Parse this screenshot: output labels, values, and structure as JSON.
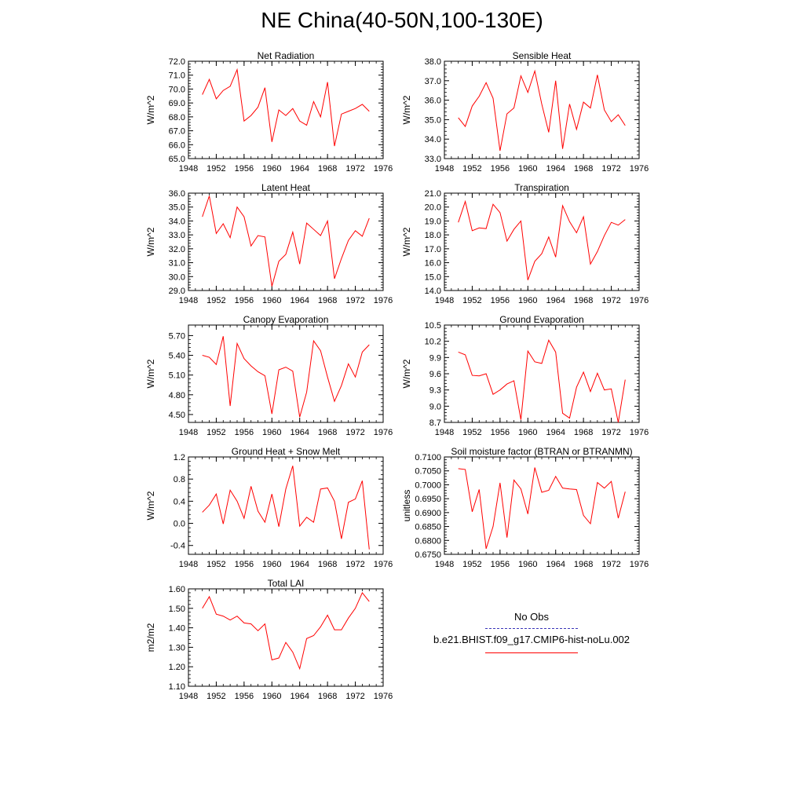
{
  "page": {
    "title": "NE China(40-50N,100-130E)"
  },
  "legend": {
    "obs_label": "No Obs",
    "model_label": "b.e21.BHIST.f09_g17.CMIP6-hist-noLu.002",
    "obs_color": "#3a35b8",
    "model_color": "#ff0000"
  },
  "chart_data": [
    {
      "type": "line",
      "title": "Net Radiation",
      "ylabel": "W/m^2",
      "xlim": [
        1948,
        1976
      ],
      "ylim": [
        65.0,
        72.0
      ],
      "xticks": [
        1948,
        1952,
        1956,
        1960,
        1964,
        1968,
        1972,
        1976
      ],
      "yticks": [
        65.0,
        66.0,
        67.0,
        68.0,
        69.0,
        70.0,
        71.0,
        72.0
      ],
      "ytick_labels": [
        "65.0",
        "66.0",
        "67.0",
        "68.0",
        "69.0",
        "70.0",
        "71.0",
        "72.0"
      ],
      "x": [
        1950,
        1951,
        1952,
        1953,
        1954,
        1955,
        1956,
        1957,
        1958,
        1959,
        1960,
        1961,
        1962,
        1963,
        1964,
        1965,
        1966,
        1967,
        1968,
        1969,
        1970,
        1971,
        1972,
        1973,
        1974
      ],
      "series": [
        {
          "name": "b.e21.BHIST.f09_g17.CMIP6-hist-noLu.002",
          "color": "#ff0000",
          "values": [
            69.6,
            70.7,
            69.3,
            69.9,
            70.2,
            71.4,
            67.7,
            68.1,
            68.7,
            70.1,
            66.2,
            68.5,
            68.1,
            68.6,
            67.7,
            67.4,
            69.1,
            68.0,
            70.5,
            65.9,
            68.2,
            68.4,
            68.6,
            68.9,
            68.4
          ]
        }
      ]
    },
    {
      "type": "line",
      "title": "Sensible Heat",
      "ylabel": "W/m^2",
      "xlim": [
        1948,
        1976
      ],
      "ylim": [
        33.0,
        38.0
      ],
      "xticks": [
        1948,
        1952,
        1956,
        1960,
        1964,
        1968,
        1972,
        1976
      ],
      "yticks": [
        33.0,
        34.0,
        35.0,
        36.0,
        37.0,
        38.0
      ],
      "ytick_labels": [
        "33.0",
        "34.0",
        "35.0",
        "36.0",
        "37.0",
        "38.0"
      ],
      "x": [
        1950,
        1951,
        1952,
        1953,
        1954,
        1955,
        1956,
        1957,
        1958,
        1959,
        1960,
        1961,
        1962,
        1963,
        1964,
        1965,
        1966,
        1967,
        1968,
        1969,
        1970,
        1971,
        1972,
        1973,
        1974
      ],
      "series": [
        {
          "name": "b.e21.BHIST.f09_g17.CMIP6-hist-noLu.002",
          "color": "#ff0000",
          "values": [
            35.1,
            34.65,
            35.7,
            36.2,
            36.9,
            36.1,
            33.4,
            35.3,
            35.6,
            37.25,
            36.4,
            37.5,
            35.8,
            34.35,
            37.0,
            33.5,
            35.8,
            34.5,
            35.9,
            35.6,
            37.3,
            35.5,
            34.9,
            35.25,
            34.7
          ]
        }
      ]
    },
    {
      "type": "line",
      "title": "Latent Heat",
      "ylabel": "W/m^2",
      "xlim": [
        1948,
        1976
      ],
      "ylim": [
        29.0,
        36.0
      ],
      "xticks": [
        1948,
        1952,
        1956,
        1960,
        1964,
        1968,
        1972,
        1976
      ],
      "yticks": [
        29.0,
        30.0,
        31.0,
        32.0,
        33.0,
        34.0,
        35.0,
        36.0
      ],
      "ytick_labels": [
        "29.0",
        "30.0",
        "31.0",
        "32.0",
        "33.0",
        "34.0",
        "35.0",
        "36.0"
      ],
      "x": [
        1950,
        1951,
        1952,
        1953,
        1954,
        1955,
        1956,
        1957,
        1958,
        1959,
        1960,
        1961,
        1962,
        1963,
        1964,
        1965,
        1966,
        1967,
        1968,
        1969,
        1970,
        1971,
        1972,
        1973,
        1974
      ],
      "series": [
        {
          "name": "b.e21.BHIST.f09_g17.CMIP6-hist-noLu.002",
          "color": "#ff0000",
          "values": [
            34.3,
            35.8,
            33.1,
            33.8,
            32.8,
            35.0,
            34.3,
            32.2,
            32.95,
            32.85,
            29.3,
            31.1,
            31.6,
            33.2,
            30.9,
            33.85,
            33.4,
            32.95,
            34.0,
            29.85,
            31.3,
            32.6,
            33.3,
            32.9,
            34.2
          ]
        }
      ]
    },
    {
      "type": "line",
      "title": "Transpiration",
      "ylabel": "W/m^2",
      "xlim": [
        1948,
        1976
      ],
      "ylim": [
        14.0,
        21.0
      ],
      "xticks": [
        1948,
        1952,
        1956,
        1960,
        1964,
        1968,
        1972,
        1976
      ],
      "yticks": [
        14.0,
        15.0,
        16.0,
        17.0,
        18.0,
        19.0,
        20.0,
        21.0
      ],
      "ytick_labels": [
        "14.0",
        "15.0",
        "16.0",
        "17.0",
        "18.0",
        "19.0",
        "20.0",
        "21.0"
      ],
      "x": [
        1950,
        1951,
        1952,
        1953,
        1954,
        1955,
        1956,
        1957,
        1958,
        1959,
        1960,
        1961,
        1962,
        1963,
        1964,
        1965,
        1966,
        1967,
        1968,
        1969,
        1970,
        1971,
        1972,
        1973,
        1974
      ],
      "series": [
        {
          "name": "b.e21.BHIST.f09_g17.CMIP6-hist-noLu.002",
          "color": "#ff0000",
          "values": [
            18.9,
            20.4,
            18.3,
            18.5,
            18.45,
            20.2,
            19.6,
            17.55,
            18.4,
            19.0,
            14.75,
            16.1,
            16.65,
            17.85,
            16.4,
            20.1,
            18.95,
            18.15,
            19.3,
            15.9,
            16.8,
            17.95,
            18.9,
            18.7,
            19.1
          ]
        }
      ]
    },
    {
      "type": "line",
      "title": "Canopy Evaporation",
      "ylabel": "W/m^2",
      "xlim": [
        1948,
        1976
      ],
      "ylim": [
        4.38,
        5.86
      ],
      "xticks": [
        1948,
        1952,
        1956,
        1960,
        1964,
        1968,
        1972,
        1976
      ],
      "yticks": [
        4.5,
        4.8,
        5.1,
        5.4,
        5.7
      ],
      "ytick_labels": [
        "4.50",
        "4.80",
        "5.10",
        "5.40",
        "5.70"
      ],
      "x": [
        1950,
        1951,
        1952,
        1953,
        1954,
        1955,
        1956,
        1957,
        1958,
        1959,
        1960,
        1961,
        1962,
        1963,
        1964,
        1965,
        1966,
        1967,
        1968,
        1969,
        1970,
        1971,
        1972,
        1973,
        1974
      ],
      "series": [
        {
          "name": "b.e21.BHIST.f09_g17.CMIP6-hist-noLu.002",
          "color": "#ff0000",
          "values": [
            5.4,
            5.37,
            5.26,
            5.69,
            4.63,
            5.58,
            5.35,
            5.24,
            5.15,
            5.09,
            4.51,
            5.18,
            5.22,
            5.16,
            4.46,
            4.84,
            5.62,
            5.47,
            5.07,
            4.7,
            4.94,
            5.27,
            5.07,
            5.45,
            5.56
          ]
        }
      ]
    },
    {
      "type": "line",
      "title": "Ground Evaporation",
      "ylabel": "W/m^2",
      "xlim": [
        1948,
        1976
      ],
      "ylim": [
        8.7,
        10.5
      ],
      "xticks": [
        1948,
        1952,
        1956,
        1960,
        1964,
        1968,
        1972,
        1976
      ],
      "yticks": [
        8.7,
        9.0,
        9.3,
        9.6,
        9.9,
        10.2,
        10.5
      ],
      "ytick_labels": [
        "8.7",
        "9.0",
        "9.3",
        "9.6",
        "9.9",
        "10.2",
        "10.5"
      ],
      "x": [
        1950,
        1951,
        1952,
        1953,
        1954,
        1955,
        1956,
        1957,
        1958,
        1959,
        1960,
        1961,
        1962,
        1963,
        1964,
        1965,
        1966,
        1967,
        1968,
        1969,
        1970,
        1971,
        1972,
        1973,
        1974
      ],
      "series": [
        {
          "name": "b.e21.BHIST.f09_g17.CMIP6-hist-noLu.002",
          "color": "#ff0000",
          "values": [
            10.0,
            9.95,
            9.57,
            9.56,
            9.6,
            9.22,
            9.3,
            9.41,
            9.47,
            8.75,
            10.02,
            9.82,
            9.79,
            10.22,
            10.0,
            8.87,
            8.78,
            9.35,
            9.63,
            9.27,
            9.61,
            9.3,
            9.32,
            8.7,
            9.49
          ]
        }
      ]
    },
    {
      "type": "line",
      "title": "Ground Heat + Snow Melt",
      "ylabel": "W/m^2",
      "xlim": [
        1948,
        1976
      ],
      "ylim": [
        -0.56,
        1.2
      ],
      "xticks": [
        1948,
        1952,
        1956,
        1960,
        1964,
        1968,
        1972,
        1976
      ],
      "yticks": [
        -0.4,
        0.0,
        0.4,
        0.8,
        1.2
      ],
      "ytick_labels": [
        "-0.4",
        "0.0",
        "0.4",
        "0.8",
        "1.2"
      ],
      "x": [
        1950,
        1951,
        1952,
        1953,
        1954,
        1955,
        1956,
        1957,
        1958,
        1959,
        1960,
        1961,
        1962,
        1963,
        1964,
        1965,
        1966,
        1967,
        1968,
        1969,
        1970,
        1971,
        1972,
        1973,
        1974
      ],
      "series": [
        {
          "name": "b.e21.BHIST.f09_g17.CMIP6-hist-noLu.002",
          "color": "#ff0000",
          "values": [
            0.2,
            0.33,
            0.53,
            -0.01,
            0.6,
            0.4,
            0.09,
            0.67,
            0.22,
            0.02,
            0.53,
            -0.06,
            0.62,
            1.04,
            -0.05,
            0.11,
            0.02,
            0.62,
            0.64,
            0.4,
            -0.28,
            0.38,
            0.44,
            0.77,
            -0.47
          ]
        }
      ]
    },
    {
      "type": "line",
      "title": "Soil moisture factor (BTRAN or BTRANMN)",
      "ylabel": "unitless",
      "xlim": [
        1948,
        1976
      ],
      "ylim": [
        0.675,
        0.71
      ],
      "xticks": [
        1948,
        1952,
        1956,
        1960,
        1964,
        1968,
        1972,
        1976
      ],
      "yticks": [
        0.675,
        0.68,
        0.685,
        0.69,
        0.695,
        0.7,
        0.705,
        0.71
      ],
      "ytick_labels": [
        "0.6750",
        "0.6800",
        "0.6850",
        "0.6900",
        "0.6950",
        "0.7000",
        "0.7050",
        "0.7100"
      ],
      "x": [
        1950,
        1951,
        1952,
        1953,
        1954,
        1955,
        1956,
        1957,
        1958,
        1959,
        1960,
        1961,
        1962,
        1963,
        1964,
        1965,
        1966,
        1967,
        1968,
        1969,
        1970,
        1971,
        1972,
        1973,
        1974
      ],
      "series": [
        {
          "name": "b.e21.BHIST.f09_g17.CMIP6-hist-noLu.002",
          "color": "#ff0000",
          "values": [
            0.7058,
            0.7055,
            0.6903,
            0.6983,
            0.677,
            0.685,
            0.7007,
            0.681,
            0.7017,
            0.6985,
            0.6895,
            0.7062,
            0.6973,
            0.698,
            0.703,
            0.6988,
            0.6985,
            0.6983,
            0.689,
            0.686,
            0.7008,
            0.6988,
            0.7012,
            0.688,
            0.6975
          ]
        }
      ]
    },
    {
      "type": "line",
      "title": "Total LAI",
      "ylabel": "m2/m2",
      "xlim": [
        1948,
        1976
      ],
      "ylim": [
        1.1,
        1.6
      ],
      "xticks": [
        1948,
        1952,
        1956,
        1960,
        1964,
        1968,
        1972,
        1976
      ],
      "yticks": [
        1.1,
        1.2,
        1.3,
        1.4,
        1.5,
        1.6
      ],
      "ytick_labels": [
        "1.10",
        "1.20",
        "1.30",
        "1.40",
        "1.50",
        "1.60"
      ],
      "x": [
        1950,
        1951,
        1952,
        1953,
        1954,
        1955,
        1956,
        1957,
        1958,
        1959,
        1960,
        1961,
        1962,
        1963,
        1964,
        1965,
        1966,
        1967,
        1968,
        1969,
        1970,
        1971,
        1972,
        1973,
        1974
      ],
      "series": [
        {
          "name": "b.e21.BHIST.f09_g17.CMIP6-hist-noLu.002",
          "color": "#ff0000",
          "values": [
            1.5,
            1.56,
            1.47,
            1.46,
            1.44,
            1.46,
            1.425,
            1.42,
            1.385,
            1.42,
            1.235,
            1.245,
            1.325,
            1.275,
            1.19,
            1.345,
            1.36,
            1.405,
            1.465,
            1.39,
            1.39,
            1.45,
            1.5,
            1.58,
            1.535
          ]
        }
      ]
    }
  ]
}
